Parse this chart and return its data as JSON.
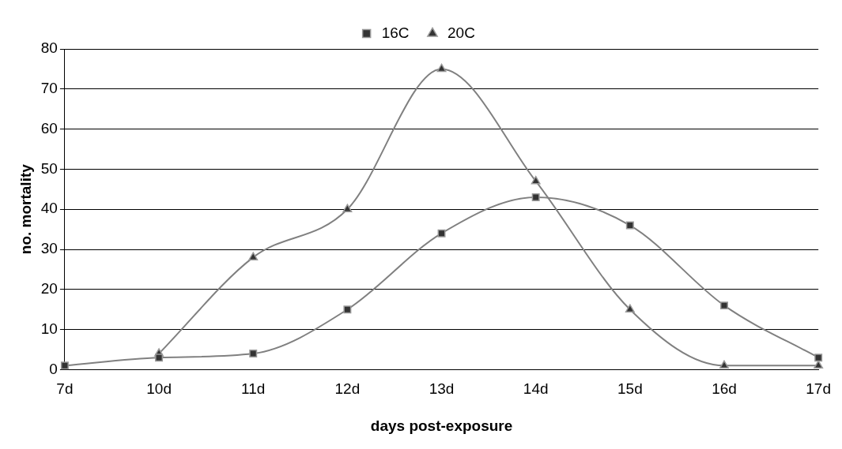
{
  "chart_data": {
    "type": "line",
    "xlabel": "days post-exposure",
    "ylabel": "no. mortality",
    "categories": [
      "7d",
      "10d",
      "11d",
      "12d",
      "13d",
      "14d",
      "15d",
      "16d",
      "17d"
    ],
    "series": [
      {
        "name": "16C",
        "color": "#808080",
        "marker": "square",
        "values": [
          1,
          3,
          4,
          15,
          34,
          43,
          36,
          16,
          3
        ]
      },
      {
        "name": "20C",
        "color": "#808080",
        "marker": "triangle",
        "values": [
          null,
          4,
          28,
          40,
          75,
          47,
          15,
          1,
          1
        ]
      }
    ],
    "ylim": [
      0,
      80
    ],
    "yticks": [
      0,
      10,
      20,
      30,
      40,
      50,
      60,
      70,
      80
    ],
    "grid": "y",
    "legend": "top"
  }
}
